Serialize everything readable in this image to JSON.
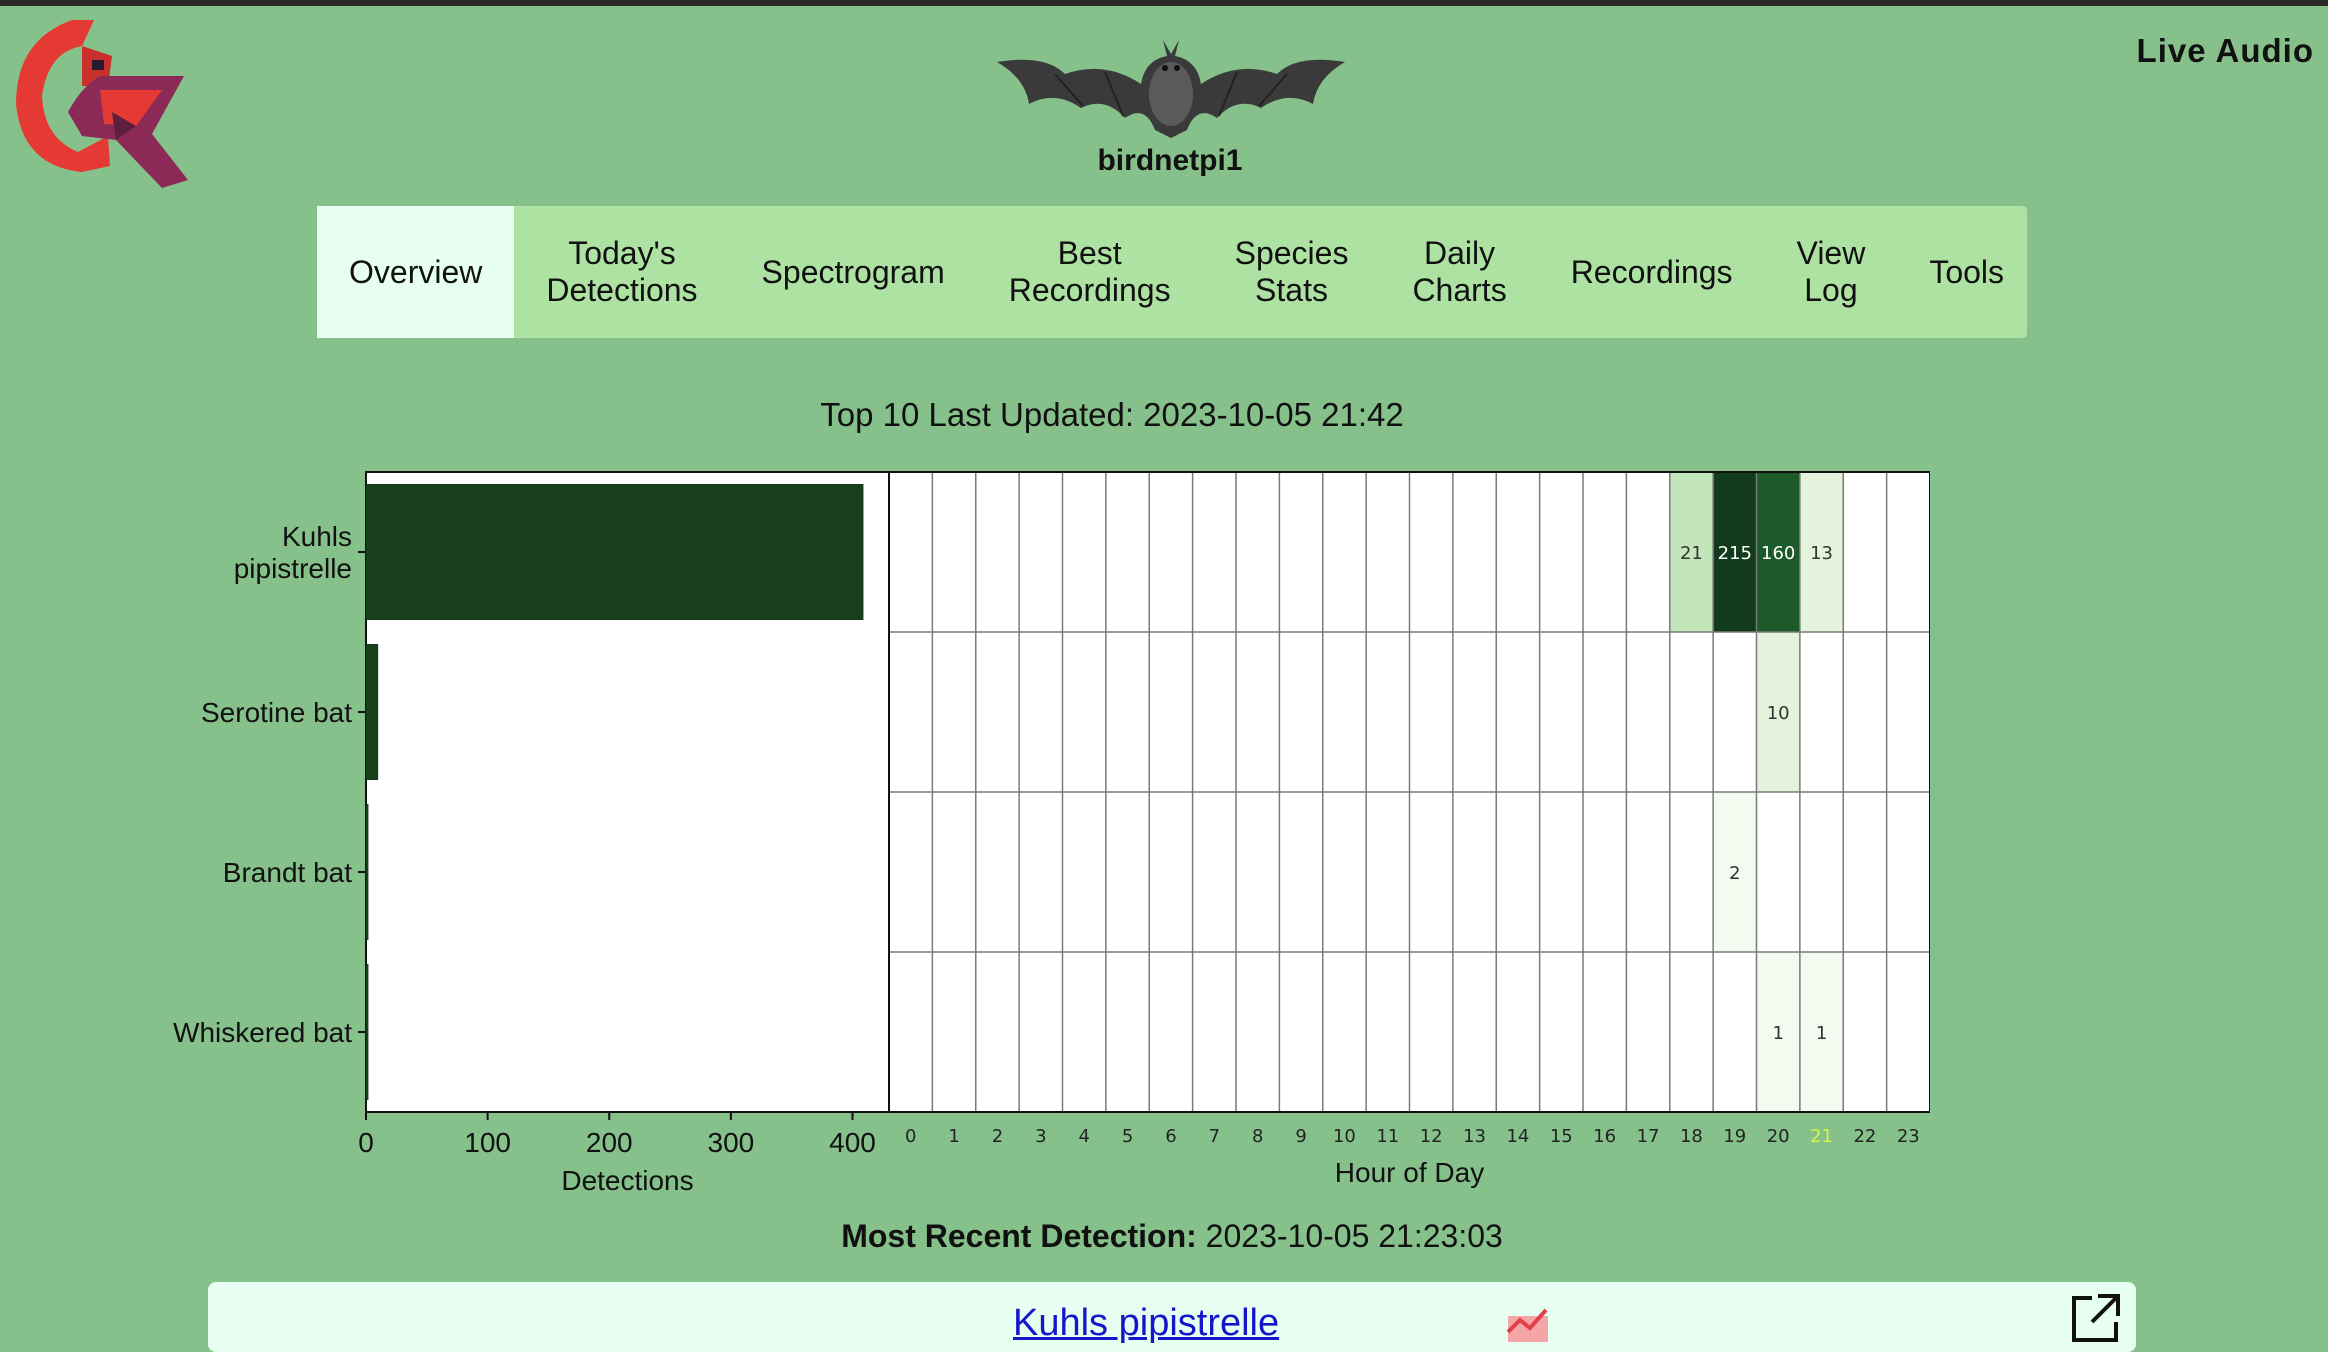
{
  "header": {
    "site_name": "birdnetpi1",
    "live_audio": "Live Audio",
    "logo_icon": "cardinal-logo-icon",
    "mascot_icon": "bat-icon"
  },
  "nav": {
    "items": [
      {
        "label": "Overview",
        "lines": [
          "Overview"
        ]
      },
      {
        "label": "Today's Detections",
        "lines": [
          "Today's",
          "Detections"
        ]
      },
      {
        "label": "Spectrogram",
        "lines": [
          "Spectrogram"
        ]
      },
      {
        "label": "Best Recordings",
        "lines": [
          "Best",
          "Recordings"
        ]
      },
      {
        "label": "Species Stats",
        "lines": [
          "Species",
          "Stats"
        ]
      },
      {
        "label": "Daily Charts",
        "lines": [
          "Daily",
          "Charts"
        ]
      },
      {
        "label": "Recordings",
        "lines": [
          "Recordings"
        ]
      },
      {
        "label": "View Log",
        "lines": [
          "View",
          "Log"
        ]
      },
      {
        "label": "Tools",
        "lines": [
          "Tools"
        ]
      }
    ],
    "active": "Overview"
  },
  "overview": {
    "last_updated": "Top 10 Last Updated: 2023-10-05 21:42",
    "recent_label": "Most Recent Detection:",
    "recent_time": "2023-10-05 21:23:03",
    "recent_species": "Kuhls pipistrelle",
    "recent_species_icon": "trend-chart-icon",
    "open_icon": "open-external-icon"
  },
  "chart_data": [
    {
      "type": "bar",
      "orientation": "horizontal",
      "categories": [
        [
          "Kuhls",
          "pipistrelle"
        ],
        [
          "Serotine bat"
        ],
        [
          "Brandt bat"
        ],
        [
          "Whiskered bat"
        ]
      ],
      "values": [
        409,
        10,
        2,
        2
      ],
      "xlabel": "Detections",
      "xticks": [
        0,
        100,
        200,
        300,
        400
      ],
      "xlim": [
        0,
        430
      ],
      "bar_color": "#173f1c"
    },
    {
      "type": "heatmap",
      "xlabel": "Hour of Day",
      "x": [
        0,
        1,
        2,
        3,
        4,
        5,
        6,
        7,
        8,
        9,
        10,
        11,
        12,
        13,
        14,
        15,
        16,
        17,
        18,
        19,
        20,
        21,
        22,
        23
      ],
      "y": [
        "Kuhls pipistrelle",
        "Serotine bat",
        "Brandt bat",
        "Whiskered bat"
      ],
      "highlight_hour": 21,
      "highlight_color": "#d9f24a",
      "cells": [
        {
          "row": 0,
          "hour": 18,
          "value": 21
        },
        {
          "row": 0,
          "hour": 19,
          "value": 215
        },
        {
          "row": 0,
          "hour": 20,
          "value": 160
        },
        {
          "row": 0,
          "hour": 21,
          "value": 13
        },
        {
          "row": 1,
          "hour": 20,
          "value": 10
        },
        {
          "row": 2,
          "hour": 19,
          "value": 2
        },
        {
          "row": 3,
          "hour": 20,
          "value": 1
        },
        {
          "row": 3,
          "hour": 21,
          "value": 1
        }
      ]
    }
  ]
}
